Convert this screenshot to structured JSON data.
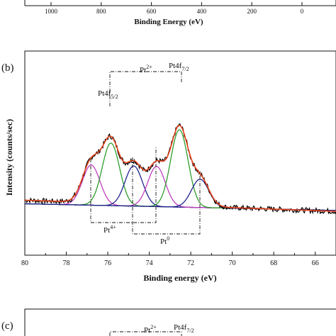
{
  "top_panel": {
    "x_ticks": [
      "1000",
      "800",
      "600",
      "400",
      "200",
      "0"
    ],
    "x_label": "Binding Energy (eV)"
  },
  "panel_b": {
    "label": "(b)",
    "y_label": "Intensity (counts/sec)",
    "x_label": "Binding energy (eV)",
    "x_ticks": [
      "80",
      "78",
      "76",
      "74",
      "72",
      "70",
      "68",
      "66"
    ],
    "annotations": {
      "pt4f52_main": "Pt4f",
      "pt4f52_sub": "5/2",
      "pt4f72_main": "Pt4f",
      "pt4f72_sub": "7/2",
      "pt2_main": "Pt",
      "pt2_sup": "2+",
      "pt4_main": "Pt",
      "pt4_sup": "4+",
      "pt0_main": "Pt",
      "pt0_sup": "0"
    }
  },
  "panel_c": {
    "label": "(c)",
    "annotations": {
      "pt2_main": "Pt",
      "pt2_sup": "2+",
      "pt4f72_main": "Pt4f",
      "pt4f72_sub": "7/2"
    }
  },
  "chart_data": {
    "type": "line",
    "xlabel": "Binding energy (eV)",
    "ylabel": "Intensity (counts/sec)",
    "xlim": [
      80,
      65
    ],
    "ylim": [
      0,
      1.0
    ],
    "x_reversed": true,
    "grid": false,
    "background": 0.06,
    "components": [
      {
        "group": "Pt4+",
        "center": 76.8,
        "height": 0.27,
        "sigma": 0.42,
        "color": "#c040c0"
      },
      {
        "group": "Pt2+",
        "center": 75.85,
        "height": 0.42,
        "sigma": 0.42,
        "color": "#2e9e2e"
      },
      {
        "group": "Pt0",
        "center": 74.75,
        "height": 0.27,
        "sigma": 0.42,
        "color": "#23238e"
      },
      {
        "group": "Pt4+",
        "center": 73.65,
        "height": 0.27,
        "sigma": 0.42,
        "color": "#c040c0"
      },
      {
        "group": "Pt2+",
        "center": 72.55,
        "height": 0.52,
        "sigma": 0.42,
        "color": "#2e9e2e"
      },
      {
        "group": "Pt0",
        "center": 71.55,
        "height": 0.19,
        "sigma": 0.42,
        "color": "#23238e"
      }
    ],
    "series_colors": {
      "raw": "#000000",
      "envelope": "#e8451e",
      "background": "#4a5fb0"
    }
  }
}
